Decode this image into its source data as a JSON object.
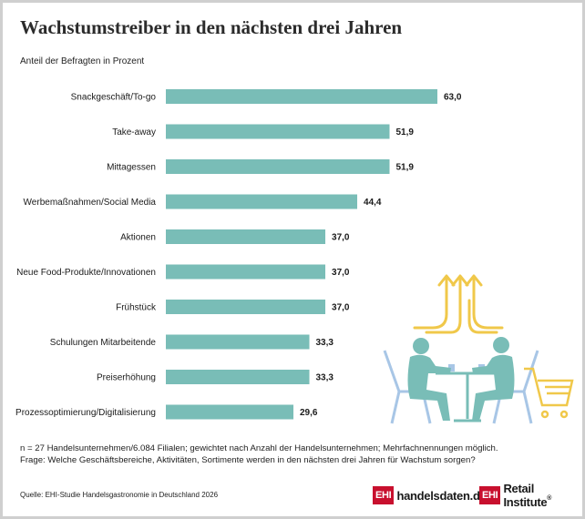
{
  "title": "Wachstumstreiber in den nächsten drei Jahren",
  "subtitle": "Anteil der Befragten in Prozent",
  "chart_data": {
    "type": "bar",
    "orientation": "horizontal",
    "categories": [
      "Snackgeschäft/To-go",
      "Take-away",
      "Mittagessen",
      "Werbemaßnahmen/Social Media",
      "Aktionen",
      "Neue Food-Produkte/Innovationen",
      "Frühstück",
      "Schulungen Mitarbeitende",
      "Preiserhöhung",
      "Prozessoptimierung/Digitalisierung"
    ],
    "values": [
      63.0,
      51.9,
      51.9,
      44.4,
      37.0,
      37.0,
      37.0,
      33.3,
      33.3,
      29.6
    ],
    "value_labels": [
      "63,0",
      "51,9",
      "51,9",
      "44,4",
      "37,0",
      "37,0",
      "37,0",
      "33,3",
      "33,3",
      "29,6"
    ],
    "xlim": [
      0,
      63
    ],
    "bar_color": "#79bdb7",
    "grid": false,
    "legend": "none"
  },
  "notes": {
    "n": "n = 27 Handelsunternehmen/6.084 Filialen; gewichtet nach Anzahl der Handelsunternehmen; Mehrfachnennungen möglich.",
    "question": "Frage: Welche Geschäftsbereiche, Aktivitäten, Sortimente werden in den nächsten drei Jahren für Wachstum sorgen?",
    "source": "Quelle: EHI-Studie Handelsgastronomie in Deutschland 2026"
  },
  "logos": {
    "logo1_box": "EHI",
    "logo1_text": "handelsdaten.de",
    "logo2_box": "EHI",
    "logo2_text": "Retail Institute",
    "logo2_reg": "®"
  },
  "colors": {
    "bar": "#79bdb7",
    "illustration_people": "#79bdb7",
    "illustration_arrows": "#f0c84a",
    "illustration_furniture": "#a8c6e6",
    "brand_red": "#c8102e"
  }
}
